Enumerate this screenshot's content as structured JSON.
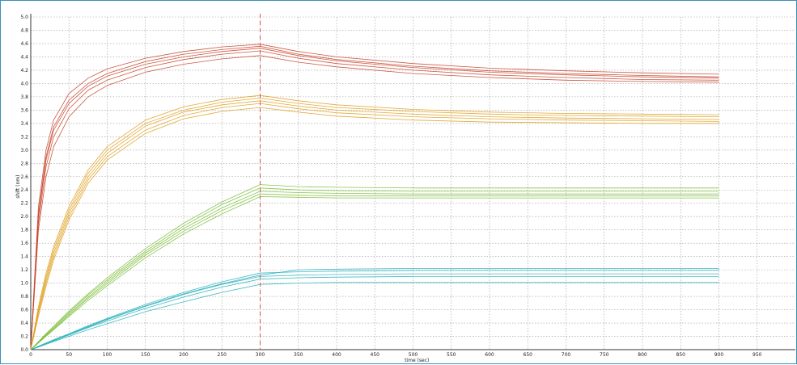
{
  "chart_data": {
    "type": "line",
    "title": "",
    "xlabel": "time (sec)",
    "ylabel": "shift (nm)",
    "xlim": [
      0,
      1000
    ],
    "ylim": [
      0,
      5.0
    ],
    "x_ticks": [
      0,
      50,
      100,
      150,
      200,
      250,
      300,
      350,
      400,
      450,
      500,
      550,
      600,
      650,
      700,
      750,
      800,
      850,
      900,
      950
    ],
    "y_ticks": [
      0.0,
      0.2,
      0.4,
      0.6,
      0.8,
      1.0,
      1.2,
      1.4,
      1.6,
      1.8,
      2.0,
      2.2,
      2.4,
      2.6,
      2.8,
      3.0,
      3.2,
      3.4,
      3.6,
      3.8,
      4.0,
      4.2,
      4.4,
      4.6,
      4.8,
      5.0
    ],
    "grid": true,
    "legend": "none",
    "marker_line": {
      "x": 300,
      "style": "dashed",
      "color": "#d9534f"
    },
    "x": [
      0,
      10,
      20,
      30,
      50,
      75,
      100,
      150,
      200,
      250,
      300,
      350,
      400,
      500,
      600,
      700,
      800,
      900
    ],
    "series": [
      {
        "color": "#c8452c",
        "values": [
          0,
          2.05,
          2.9,
          3.35,
          3.75,
          4.0,
          4.15,
          4.33,
          4.44,
          4.51,
          4.56,
          4.44,
          4.36,
          4.26,
          4.19,
          4.15,
          4.12,
          4.1
        ]
      },
      {
        "color": "#c8452c",
        "values": [
          0,
          1.9,
          2.75,
          3.2,
          3.62,
          3.9,
          4.05,
          4.24,
          4.36,
          4.44,
          4.49,
          4.38,
          4.3,
          4.2,
          4.13,
          4.09,
          4.06,
          4.05
        ]
      },
      {
        "color": "#c8452c",
        "values": [
          0,
          2.15,
          3.0,
          3.45,
          3.85,
          4.08,
          4.22,
          4.38,
          4.48,
          4.55,
          4.59,
          4.48,
          4.4,
          4.3,
          4.23,
          4.19,
          4.16,
          4.14
        ]
      },
      {
        "color": "#c8452c",
        "values": [
          0,
          1.8,
          2.6,
          3.05,
          3.5,
          3.8,
          3.97,
          4.17,
          4.29,
          4.37,
          4.42,
          4.32,
          4.25,
          4.15,
          4.09,
          4.05,
          4.03,
          4.02
        ]
      },
      {
        "color": "#c8452c",
        "values": [
          0,
          2.0,
          2.85,
          3.3,
          3.7,
          3.96,
          4.11,
          4.29,
          4.4,
          4.48,
          4.53,
          4.42,
          4.34,
          4.24,
          4.17,
          4.13,
          4.1,
          4.08
        ]
      },
      {
        "color": "#e0a020",
        "values": [
          0,
          0.6,
          1.1,
          1.5,
          2.1,
          2.65,
          3.0,
          3.4,
          3.6,
          3.72,
          3.78,
          3.7,
          3.64,
          3.58,
          3.54,
          3.52,
          3.51,
          3.5
        ]
      },
      {
        "color": "#e0a020",
        "values": [
          0,
          0.55,
          1.0,
          1.4,
          2.0,
          2.55,
          2.9,
          3.3,
          3.52,
          3.64,
          3.7,
          3.62,
          3.56,
          3.5,
          3.47,
          3.45,
          3.44,
          3.43
        ]
      },
      {
        "color": "#e0a020",
        "values": [
          0,
          0.65,
          1.15,
          1.55,
          2.15,
          2.7,
          3.05,
          3.45,
          3.65,
          3.76,
          3.82,
          3.74,
          3.68,
          3.61,
          3.57,
          3.55,
          3.54,
          3.53
        ]
      },
      {
        "color": "#e0a020",
        "values": [
          0,
          0.5,
          0.95,
          1.35,
          1.95,
          2.5,
          2.85,
          3.25,
          3.47,
          3.58,
          3.64,
          3.57,
          3.51,
          3.45,
          3.42,
          3.41,
          3.4,
          3.4
        ]
      },
      {
        "color": "#e0a020",
        "values": [
          0,
          0.58,
          1.05,
          1.45,
          2.05,
          2.6,
          2.95,
          3.36,
          3.57,
          3.68,
          3.74,
          3.66,
          3.6,
          3.54,
          3.5,
          3.48,
          3.47,
          3.46
        ]
      },
      {
        "color": "#7cbf3a",
        "values": [
          0,
          0.12,
          0.24,
          0.35,
          0.58,
          0.84,
          1.08,
          1.52,
          1.9,
          2.22,
          2.48,
          2.45,
          2.44,
          2.43,
          2.43,
          2.43,
          2.43,
          2.43
        ]
      },
      {
        "color": "#7cbf3a",
        "values": [
          0,
          0.11,
          0.22,
          0.32,
          0.54,
          0.79,
          1.02,
          1.45,
          1.82,
          2.13,
          2.38,
          2.36,
          2.35,
          2.34,
          2.34,
          2.34,
          2.34,
          2.34
        ]
      },
      {
        "color": "#7cbf3a",
        "values": [
          0,
          0.1,
          0.2,
          0.3,
          0.5,
          0.74,
          0.96,
          1.38,
          1.74,
          2.04,
          2.3,
          2.29,
          2.28,
          2.28,
          2.28,
          2.28,
          2.28,
          2.28
        ]
      },
      {
        "color": "#7cbf3a",
        "values": [
          0,
          0.12,
          0.23,
          0.34,
          0.56,
          0.82,
          1.05,
          1.48,
          1.86,
          2.18,
          2.43,
          2.4,
          2.39,
          2.38,
          2.38,
          2.38,
          2.38,
          2.38
        ]
      },
      {
        "color": "#7cbf3a",
        "values": [
          0,
          0.11,
          0.21,
          0.31,
          0.52,
          0.77,
          0.99,
          1.42,
          1.78,
          2.09,
          2.34,
          2.32,
          2.31,
          2.31,
          2.31,
          2.31,
          2.31,
          2.31
        ]
      },
      {
        "color": "#2bb3bd",
        "values": [
          0,
          0.05,
          0.1,
          0.15,
          0.24,
          0.36,
          0.47,
          0.68,
          0.86,
          1.02,
          1.15,
          1.17,
          1.18,
          1.19,
          1.19,
          1.19,
          1.19,
          1.19
        ]
      },
      {
        "color": "#2bb3bd",
        "values": [
          0,
          0.04,
          0.09,
          0.13,
          0.22,
          0.33,
          0.43,
          0.62,
          0.79,
          0.94,
          1.06,
          1.08,
          1.09,
          1.1,
          1.1,
          1.1,
          1.1,
          1.1
        ]
      },
      {
        "color": "#2bb3bd",
        "values": [
          0,
          0.04,
          0.08,
          0.12,
          0.2,
          0.3,
          0.39,
          0.57,
          0.72,
          0.86,
          0.98,
          1.0,
          1.01,
          1.01,
          1.01,
          1.01,
          1.01,
          1.01
        ]
      },
      {
        "color": "#2bb3bd",
        "values": [
          0,
          0.05,
          0.09,
          0.14,
          0.23,
          0.34,
          0.45,
          0.65,
          0.83,
          0.98,
          1.1,
          1.12,
          1.13,
          1.14,
          1.14,
          1.14,
          1.14,
          1.14
        ]
      },
      {
        "color": "#2bb3bd",
        "values": [
          0,
          0.05,
          0.1,
          0.14,
          0.23,
          0.35,
          0.46,
          0.66,
          0.84,
          0.99,
          1.12,
          1.2,
          1.21,
          1.22,
          1.22,
          1.22,
          1.22,
          1.22
        ]
      }
    ]
  }
}
